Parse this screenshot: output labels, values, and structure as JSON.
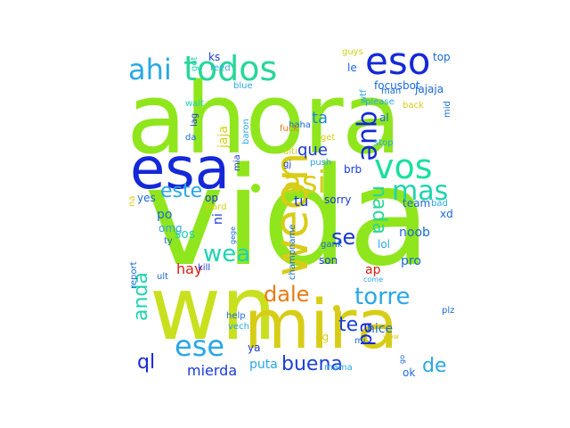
{
  "words": [
    {
      "text": "vida",
      "color": "#8fe61c"
    },
    {
      "text": "ahora",
      "color": "#8fe61c"
    },
    {
      "text": "wn",
      "color": "#c8e01e"
    },
    {
      "text": "esa",
      "color": "#1428d8"
    },
    {
      "text": "mira",
      "color": "#d8cd16"
    },
    {
      "text": "weon",
      "color": "#d8cd16"
    },
    {
      "text": "todos",
      "color": "#27d79a"
    },
    {
      "text": "eso",
      "color": "#1428d8"
    },
    {
      "text": "ahi",
      "color": "#2aa7e6"
    },
    {
      "text": "vos",
      "color": "#1adf9e"
    },
    {
      "text": "asi",
      "color": "#d8cd16"
    },
    {
      "text": "mas",
      "color": "#1fd3b0"
    },
    {
      "text": "que",
      "color": "#1428d8"
    },
    {
      "text": "este",
      "color": "#2aa7e6"
    },
    {
      "text": "dale",
      "color": "#e87b14"
    },
    {
      "text": "torre",
      "color": "#2aa7e6"
    },
    {
      "text": "nada",
      "color": "#27d79a"
    },
    {
      "text": "ese",
      "color": "#2aa7e6"
    },
    {
      "text": "wea",
      "color": "#1fd3b0"
    },
    {
      "text": "ql",
      "color": "#1428d8"
    },
    {
      "text": "buena",
      "color": "#1a40d8"
    },
    {
      "text": "anda",
      "color": "#1fd3b0"
    },
    {
      "text": "pa",
      "color": "#1428d8"
    },
    {
      "text": "te",
      "color": "#1a40d8"
    },
    {
      "text": "se",
      "color": "#1a3ad8"
    },
    {
      "text": "de",
      "color": "#2aa7e6"
    },
    {
      "text": "ta",
      "color": "#1a8ad8"
    },
    {
      "text": "que",
      "color": "#1a3ad8"
    },
    {
      "text": "tu",
      "color": "#1a3ad8"
    },
    {
      "text": "mierda",
      "color": "#1a3ad8"
    },
    {
      "text": "hay",
      "color": "#d82010"
    },
    {
      "text": "sos",
      "color": "#1fd3b0"
    },
    {
      "text": "po",
      "color": "#1a6ad8"
    },
    {
      "text": "ni",
      "color": "#1a3ad8"
    },
    {
      "text": "puta",
      "color": "#2aa7e6"
    },
    {
      "text": "focusbot",
      "color": "#1a6ad8"
    },
    {
      "text": "jajaja",
      "color": "#1a6ad8"
    },
    {
      "text": "top",
      "color": "#1a6ad8"
    },
    {
      "text": "ks",
      "color": "#1a3ad8"
    },
    {
      "text": "reed",
      "color": "#2aa7e6"
    },
    {
      "text": "guys",
      "color": "#d8cd16"
    },
    {
      "text": "le",
      "color": "#1a6ad8"
    },
    {
      "text": "wtf",
      "color": "#2aa7e6"
    },
    {
      "text": "man",
      "color": "#1a6ad8"
    },
    {
      "text": "please",
      "color": "#2aa7e6"
    },
    {
      "text": "al",
      "color": "#1a6ad8"
    },
    {
      "text": "back",
      "color": "#d8cd16"
    },
    {
      "text": "mid",
      "color": "#1a6ad8"
    },
    {
      "text": "stop",
      "color": "#2aa7e6"
    },
    {
      "text": "get",
      "color": "#d8cd16"
    },
    {
      "text": "ulti",
      "color": "#d8cd16"
    },
    {
      "text": "gj",
      "color": "#1a3ad8"
    },
    {
      "text": "push",
      "color": "#2aa7e6"
    },
    {
      "text": "brb",
      "color": "#1a3ad8"
    },
    {
      "text": "haha",
      "color": "#1a6ad8"
    },
    {
      "text": "jaja",
      "color": "#d8cd16"
    },
    {
      "text": "lag",
      "color": "#1a3ad8"
    },
    {
      "text": "da",
      "color": "#1a6ad8"
    },
    {
      "text": "wait",
      "color": "#1fd3b0"
    },
    {
      "text": "got",
      "color": "#1fd3b0"
    },
    {
      "text": "blue",
      "color": "#2aa7e6"
    },
    {
      "text": "baron",
      "color": "#2aa7e6"
    },
    {
      "text": "fuck",
      "color": "#e87b14"
    },
    {
      "text": "mia",
      "color": "#1a3ad8"
    },
    {
      "text": "sorry",
      "color": "#1a3ad8"
    },
    {
      "text": "team",
      "color": "#1a6ad8"
    },
    {
      "text": "bad",
      "color": "#2aa7e6"
    },
    {
      "text": "xd",
      "color": "#1a6ad8"
    },
    {
      "text": "noob",
      "color": "#1a6ad8"
    },
    {
      "text": "lol",
      "color": "#2aa7e6"
    },
    {
      "text": "pro",
      "color": "#1a6ad8"
    },
    {
      "text": "gank",
      "color": "#1a6ad8"
    },
    {
      "text": "son",
      "color": "#1a3ad8"
    },
    {
      "text": "ap",
      "color": "#d82010"
    },
    {
      "text": "come",
      "color": "#2aa7e6"
    },
    {
      "text": "plz",
      "color": "#1a6ad8"
    },
    {
      "text": "nice",
      "color": "#1a6ad8"
    },
    {
      "text": "mi",
      "color": "#1a6ad8"
    },
    {
      "text": "wow",
      "color": "#d8cd16"
    },
    {
      "text": "go",
      "color": "#1a6ad8"
    },
    {
      "text": "ok",
      "color": "#1a6ad8"
    },
    {
      "text": "mama",
      "color": "#2aa7e6"
    },
    {
      "text": "gg",
      "color": "#d8cd16"
    },
    {
      "text": "ya",
      "color": "#1a3ad8"
    },
    {
      "text": "help",
      "color": "#1a6ad8"
    },
    {
      "text": "vech",
      "color": "#2aa7e6"
    },
    {
      "text": "champname",
      "color": "#1a6ad8"
    },
    {
      "text": "yes",
      "color": "#1a6ad8"
    },
    {
      "text": "op",
      "color": "#1a3ad8"
    },
    {
      "text": "ward",
      "color": "#d8cd16"
    },
    {
      "text": "na",
      "color": "#d8cd16"
    },
    {
      "text": "omg",
      "color": "#2aa7e6"
    },
    {
      "text": "ty",
      "color": "#1a6ad8"
    },
    {
      "text": "report",
      "color": "#1a6ad8"
    },
    {
      "text": "ult",
      "color": "#1a6ad8"
    },
    {
      "text": "kill",
      "color": "#1a3ad8"
    },
    {
      "text": "gege",
      "color": "#1a6ad8"
    }
  ]
}
